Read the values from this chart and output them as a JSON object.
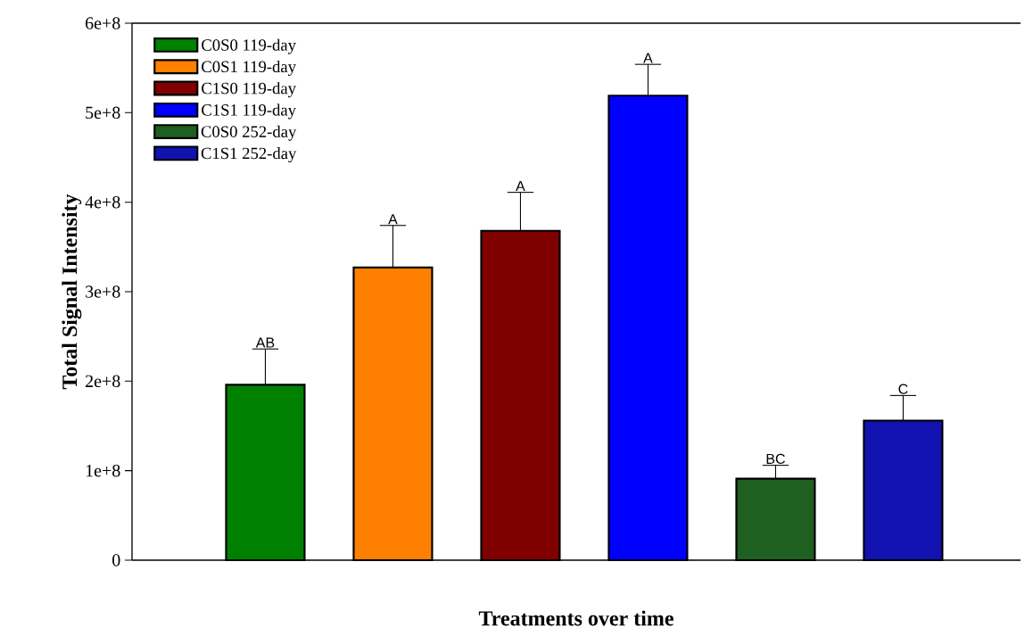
{
  "chart_data": {
    "type": "bar",
    "xlabel": "Treatments over time",
    "ylabel": "Total Signal Intensity",
    "categories": [
      null
    ],
    "ylim": [
      0,
      600000000
    ],
    "yticks": [
      {
        "value": 0,
        "label": "0"
      },
      {
        "value": 100000000,
        "label": "1e+8"
      },
      {
        "value": 200000000,
        "label": "2e+8"
      },
      {
        "value": 300000000,
        "label": "3e+8"
      },
      {
        "value": 400000000,
        "label": "4e+8"
      },
      {
        "value": 500000000,
        "label": "5e+8"
      },
      {
        "value": 600000000,
        "label": "6e+8"
      }
    ],
    "legend": "top left",
    "series": [
      {
        "name": "C0S0 119-day",
        "color": "#008000",
        "values": [
          196000000
        ],
        "errors": [
          [
            196000000,
            236000000
          ]
        ],
        "value_labels": [
          "AB"
        ]
      },
      {
        "name": "C0S1 119-day",
        "color": "#ff8000",
        "values": [
          327000000
        ],
        "errors": [
          [
            327000000,
            374000000
          ]
        ],
        "value_labels": [
          "A"
        ]
      },
      {
        "name": "C1S0 119-day",
        "color": "#800000",
        "values": [
          368000000
        ],
        "errors": [
          [
            368000000,
            411000000
          ]
        ],
        "value_labels": [
          "A"
        ]
      },
      {
        "name": "C1S1 119-day",
        "color": "#0000ff",
        "values": [
          519000000
        ],
        "errors": [
          [
            519000000,
            554000000
          ]
        ],
        "value_labels": [
          "A"
        ]
      },
      {
        "name": "C0S0 252-day",
        "color": "#1f5f1f",
        "values": [
          91000000
        ],
        "errors": [
          [
            91000000,
            106000000
          ]
        ],
        "value_labels": [
          "BC"
        ]
      },
      {
        "name": "C1S1 252-day",
        "color": "#1212b0",
        "values": [
          156000000
        ],
        "errors": [
          [
            156000000,
            184000000
          ]
        ],
        "value_labels": [
          "C"
        ]
      }
    ]
  }
}
